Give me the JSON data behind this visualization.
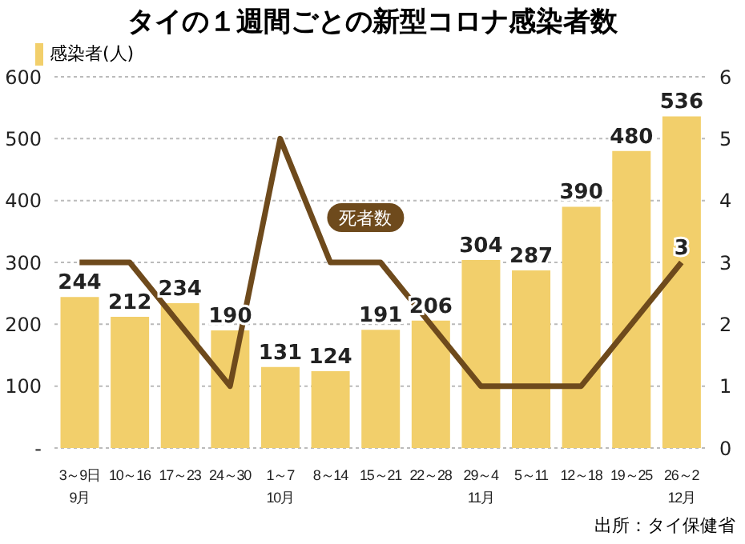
{
  "chart_data": {
    "type": "bar",
    "title": "タイの１週間ごとの新型コロナ感染者数",
    "categories": [
      "3～9日\n9月",
      "10～16",
      "17～23",
      "24～30",
      "1～7\n10月",
      "8～14",
      "15～21",
      "22～28",
      "29～4\n11月",
      "5～11",
      "12～18",
      "19～25",
      "26～2\n12月"
    ],
    "series": [
      {
        "name": "感染者(人)",
        "color": "#f2cf6b",
        "values": [
          244,
          212,
          234,
          190,
          131,
          124,
          191,
          206,
          304,
          287,
          390,
          480,
          536
        ],
        "value_labels": [
          "244",
          "212",
          "234",
          "190",
          "131",
          "124",
          "191",
          "206",
          "304",
          "287",
          "390",
          "480",
          "536"
        ]
      },
      {
        "name": "死者数",
        "type": "line",
        "axis": "y2",
        "color": "#6e4a1c",
        "values": [
          3,
          3,
          2,
          1,
          5,
          3,
          3,
          2,
          1,
          1,
          1,
          2,
          3
        ],
        "value_labels": [
          null,
          null,
          null,
          null,
          null,
          null,
          null,
          null,
          null,
          null,
          null,
          null,
          "3"
        ]
      }
    ],
    "ylim": [
      0,
      600
    ],
    "yticks": [
      {
        "value": 0,
        "label": "-"
      },
      100,
      200,
      300,
      400,
      500,
      600
    ],
    "y2lim": [
      0,
      6
    ],
    "y2ticks": [
      0,
      1,
      2,
      3,
      4,
      5,
      6
    ],
    "grid": "y",
    "legend": "top left",
    "annotations": [
      "出所：タイ保健省"
    ]
  }
}
